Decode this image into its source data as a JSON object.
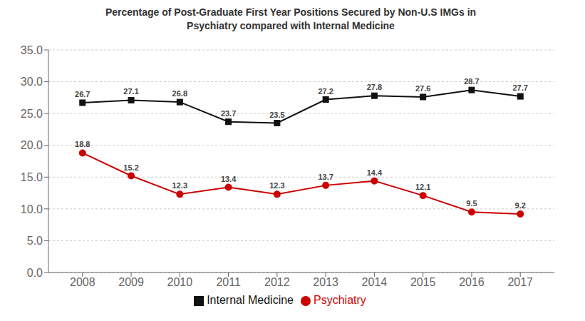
{
  "chart_data": {
    "type": "line",
    "title": "Percentage of Post-Graduate First Year Positions Secured by Non-U.S IMGs in\nPsychiatry compared with Internal Medicine",
    "x": [
      2008,
      2009,
      2010,
      2011,
      2012,
      2013,
      2014,
      2015,
      2016,
      2017
    ],
    "series": [
      {
        "name": "Internal Medicine",
        "color": "#111111",
        "marker": "square",
        "values": [
          26.7,
          27.1,
          26.8,
          23.7,
          23.5,
          27.2,
          27.8,
          27.6,
          28.7,
          27.7
        ]
      },
      {
        "name": "Psychiatry",
        "color": "#cc0000",
        "marker": "circle",
        "values": [
          18.8,
          15.2,
          12.3,
          13.4,
          12.3,
          13.7,
          14.4,
          12.1,
          9.5,
          9.2
        ]
      }
    ],
    "xlim": [
      2007.3,
      2017.7
    ],
    "xticks": [
      2008,
      2009,
      2010,
      2011,
      2012,
      2013,
      2014,
      2015,
      2016,
      2017
    ],
    "ylim": [
      0,
      35
    ],
    "yticks": [
      {
        "value": 0,
        "label": "0.0"
      },
      {
        "value": 5,
        "label": "5.0"
      },
      {
        "value": 10,
        "label": "10.0"
      },
      {
        "value": 15,
        "label": "15.0"
      },
      {
        "value": 20,
        "label": "20.0"
      },
      {
        "value": 25,
        "label": "25.0"
      },
      {
        "value": 30,
        "label": "30.0"
      },
      {
        "value": 35,
        "label": "35.0"
      }
    ],
    "grid": "y",
    "legend": "bottom",
    "data_labels": true
  }
}
